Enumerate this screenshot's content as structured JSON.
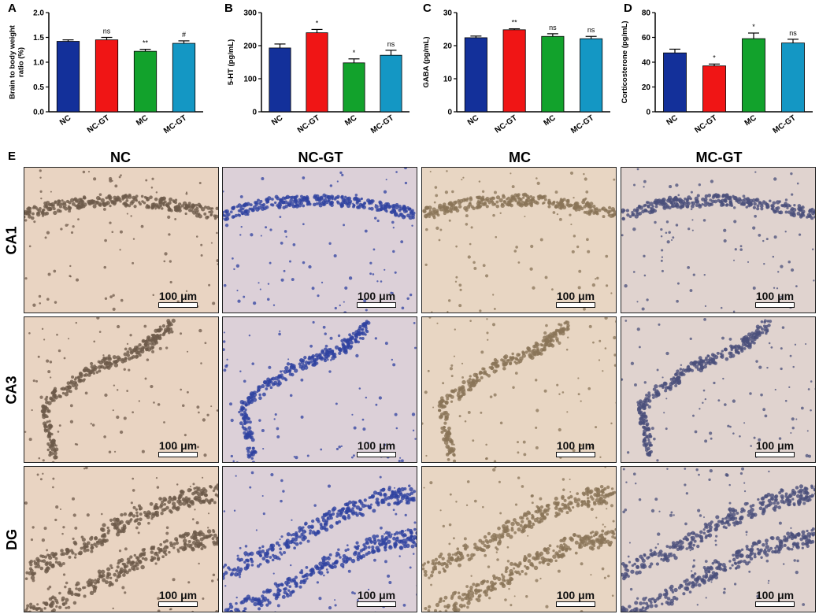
{
  "panels": {
    "A": "A",
    "B": "B",
    "C": "C",
    "D": "D",
    "E": "E"
  },
  "chart_data": [
    {
      "type": "bar",
      "panel": "A",
      "categories": [
        "NC",
        "NC-GT",
        "MC",
        "MC-GT"
      ],
      "values": [
        1.42,
        1.45,
        1.22,
        1.38
      ],
      "errors": [
        0.03,
        0.05,
        0.04,
        0.05
      ],
      "annotations": [
        "",
        "ns",
        "**",
        "#"
      ],
      "ylabel": "Brain to body weight ratio (%)",
      "ylabel_lines": [
        "Brain to body weight",
        "ratio (%)"
      ],
      "ylim": [
        0,
        2.0
      ],
      "yticks": [
        "0.0",
        "0.5",
        "1.0",
        "1.5",
        "2.0"
      ],
      "colors": [
        "#13309a",
        "#f01515",
        "#12a22c",
        "#1497c4"
      ]
    },
    {
      "type": "bar",
      "panel": "B",
      "categories": [
        "NC",
        "NC-GT",
        "MC",
        "MC-GT"
      ],
      "values": [
        193,
        239,
        148,
        171
      ],
      "errors": [
        12,
        10,
        12,
        15
      ],
      "annotations": [
        "",
        "*",
        "*",
        "ns"
      ],
      "ylabel": "5-HT (pg/mL)",
      "ylabel_lines": [
        "5-HT (pg/mL)"
      ],
      "ylim": [
        0,
        300
      ],
      "yticks": [
        "0",
        "100",
        "200",
        "300"
      ],
      "colors": [
        "#13309a",
        "#f01515",
        "#12a22c",
        "#1497c4"
      ]
    },
    {
      "type": "bar",
      "panel": "C",
      "categories": [
        "NC",
        "NC-GT",
        "MC",
        "MC-GT"
      ],
      "values": [
        22.4,
        24.8,
        22.8,
        22.1
      ],
      "errors": [
        0.5,
        0.3,
        0.8,
        0.7
      ],
      "annotations": [
        "",
        "**",
        "ns",
        "ns"
      ],
      "ylabel": "GABA (pg/mL)",
      "ylabel_lines": [
        "GABA (pg/mL)"
      ],
      "ylim": [
        0,
        30
      ],
      "yticks": [
        "0",
        "10",
        "20",
        "30"
      ],
      "colors": [
        "#13309a",
        "#f01515",
        "#12a22c",
        "#1497c4"
      ]
    },
    {
      "type": "bar",
      "panel": "D",
      "categories": [
        "NC",
        "NC-GT",
        "MC",
        "MC-GT"
      ],
      "values": [
        47.5,
        37,
        59,
        55.5
      ],
      "errors": [
        3,
        1.5,
        4.5,
        3
      ],
      "annotations": [
        "",
        "*",
        "*",
        "ns"
      ],
      "ylabel": "Corticosterone (pg/mL)",
      "ylabel_lines": [
        "Corticosterone (pg/mL)"
      ],
      "ylim": [
        0,
        80
      ],
      "yticks": [
        "0",
        "20",
        "40",
        "60",
        "80"
      ],
      "colors": [
        "#13309a",
        "#f01515",
        "#12a22c",
        "#1497c4"
      ]
    }
  ],
  "micrographs": {
    "columns": [
      "NC",
      "NC-GT",
      "MC",
      "MC-GT"
    ],
    "rows": [
      "CA1",
      "CA3",
      "DG"
    ],
    "scale_bar": "100 μm",
    "tints": {
      "NC": {
        "bg": "#e9d4c2",
        "cells": "#6d5a4a"
      },
      "NC-GT": {
        "bg": "#dcd0d8",
        "cells": "#3042a0"
      },
      "MC": {
        "bg": "#e8d6c3",
        "cells": "#8a7458"
      },
      "MC-GT": {
        "bg": "#e0d3cf",
        "cells": "#4a4f7a"
      }
    }
  }
}
